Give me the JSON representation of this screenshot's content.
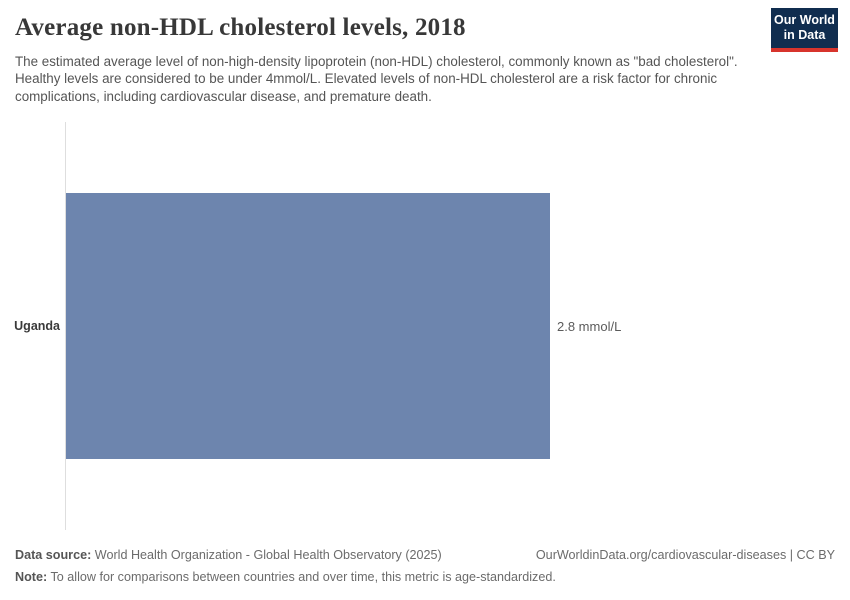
{
  "header": {
    "title": "Average non-HDL cholesterol levels, 2018",
    "subtitle": "The estimated average level of non-high-density lipoprotein (non-HDL) cholesterol, commonly known as \"bad cholesterol\". Healthy levels are considered to be under 4mmol/L. Elevated levels of non-HDL cholesterol are a risk factor for chronic complications, including cardiovascular disease, and premature death.",
    "logo": {
      "line1": "Our World",
      "line2": "in Data"
    }
  },
  "chart_data": {
    "type": "bar",
    "orientation": "horizontal",
    "title": "Average non-HDL cholesterol levels, 2018",
    "categories": [
      "Uganda"
    ],
    "values": [
      2.8
    ],
    "unit": "mmol/L",
    "value_labels": [
      "2.8 mmol/L"
    ],
    "xlabel": "",
    "ylabel": "",
    "xlim": [
      0,
      2.8
    ],
    "grid": false,
    "axis_ticks_visible": false,
    "legend": "none",
    "year": "2018"
  },
  "footer": {
    "data_source_label": "Data source:",
    "data_source": "World Health Organization - Global Health Observatory (2025)",
    "attribution": "OurWorldinData.org/cardiovascular-diseases | CC BY",
    "note_label": "Note:",
    "note": "To allow for comparisons between countries and over time, this metric is age-standardized."
  },
  "colors": {
    "bar": "#6d85ae",
    "axis_line": "#dedede",
    "logo_background": "#102d4f",
    "logo_stripe": "#d7342c",
    "title_text": "#383838",
    "subtitle_text": "#555555"
  }
}
